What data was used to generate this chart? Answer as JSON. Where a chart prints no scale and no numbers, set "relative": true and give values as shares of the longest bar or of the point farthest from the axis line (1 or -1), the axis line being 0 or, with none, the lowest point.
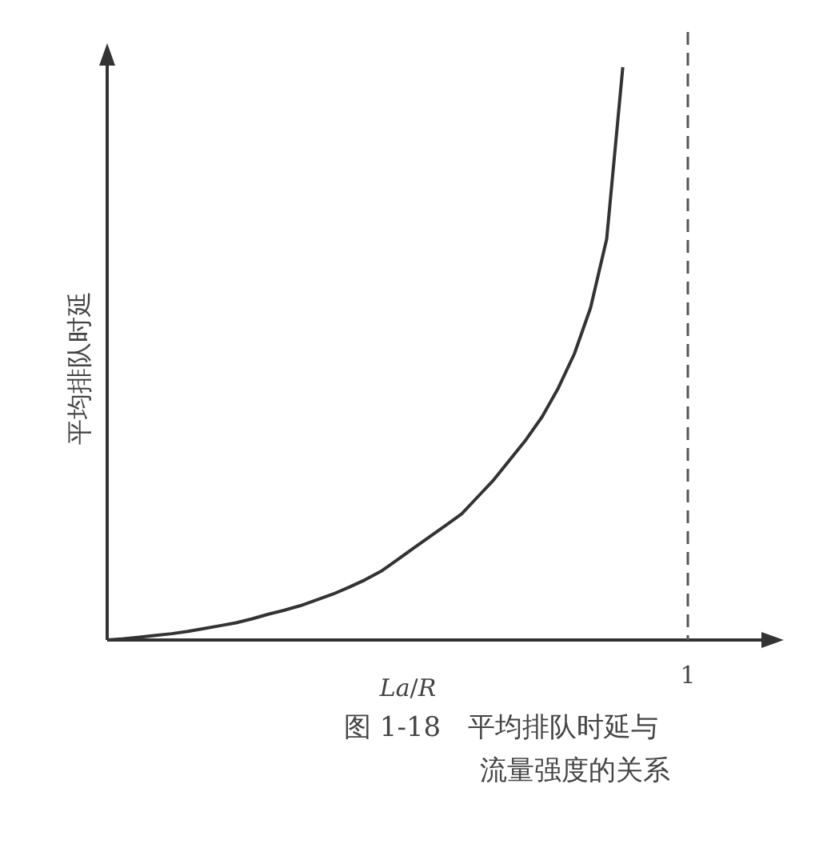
{
  "chart_data": {
    "type": "line",
    "relative": true,
    "xlabel": "*La*/*R*",
    "ylabel": "平均排队时延",
    "categories": [
      null,
      null,
      null,
      null,
      null,
      null,
      null,
      null,
      null,
      null,
      null,
      null,
      null,
      null,
      null,
      null,
      null,
      null,
      null,
      null,
      null,
      null,
      null,
      null,
      null,
      null,
      null,
      null,
      null,
      null,
      null,
      null,
      null,
      null,
      null,
      null,
      null,
      null,
      null,
      null,
      null,
      null
    ],
    "values": [
      0,
      0.002,
      0.005,
      0.008,
      0.011,
      0.015,
      0.02,
      0.025,
      0.03,
      0.037,
      0.045,
      0.052,
      0.06,
      0.07,
      0.08,
      0.092,
      0.105,
      0.12,
      0.14,
      0.16,
      0.18,
      0.2,
      0.22,
      0.25,
      0.28,
      0.315,
      0.35,
      0.39,
      0.44,
      0.5,
      0.58,
      0.7,
      1,
      null,
      null,
      null,
      null,
      null,
      null,
      null,
      null,
      null
    ],
    "color": "#333333",
    "annotations": [
      "1",
      "图 1-18　平均排队时延与流量强度的关系"
    ]
  }
}
